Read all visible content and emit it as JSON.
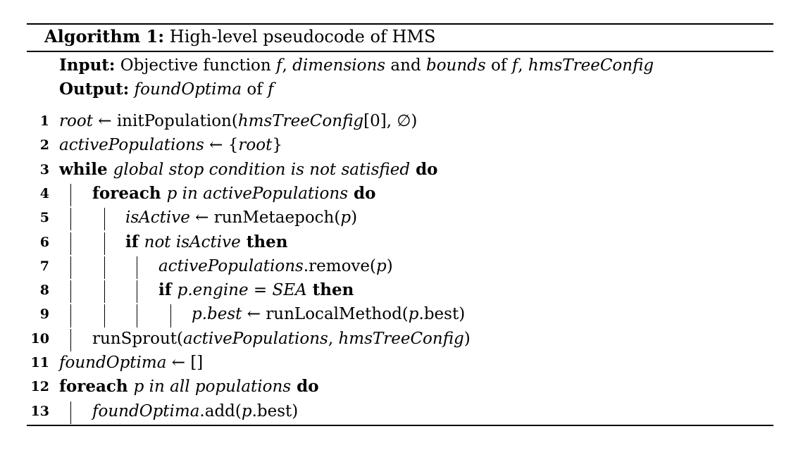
{
  "caption": {
    "label": "Algorithm 1:",
    "text": "High-level pseudocode of HMS"
  },
  "io": {
    "input_label": "Input:",
    "input_segments": [
      {
        "t": "Objective function ",
        "s": "r"
      },
      {
        "t": "f",
        "s": "i"
      },
      {
        "t": ", ",
        "s": "r"
      },
      {
        "t": "dimensions",
        "s": "i"
      },
      {
        "t": " and ",
        "s": "r"
      },
      {
        "t": "bounds",
        "s": "i"
      },
      {
        "t": " of ",
        "s": "r"
      },
      {
        "t": "f",
        "s": "i"
      },
      {
        "t": ", ",
        "s": "r"
      },
      {
        "t": "hmsTreeConfig",
        "s": "i"
      }
    ],
    "output_label": "Output:",
    "output_segments": [
      {
        "t": "foundOptima",
        "s": "i"
      },
      {
        "t": " of ",
        "s": "r"
      },
      {
        "t": "f",
        "s": "i"
      }
    ]
  },
  "lines": [
    {
      "n": "1",
      "indent": 0,
      "segs": [
        {
          "t": "root",
          "s": "i"
        },
        {
          "t": " ← initPopulation(",
          "s": "r"
        },
        {
          "t": "hmsTreeConfig",
          "s": "i"
        },
        {
          "t": "[0], ∅)",
          "s": "r"
        }
      ]
    },
    {
      "n": "2",
      "indent": 0,
      "segs": [
        {
          "t": "activePopulations",
          "s": "i"
        },
        {
          "t": " ← {",
          "s": "r"
        },
        {
          "t": "root",
          "s": "i"
        },
        {
          "t": "}",
          "s": "r"
        }
      ]
    },
    {
      "n": "3",
      "indent": 0,
      "segs": [
        {
          "t": "while ",
          "s": "b"
        },
        {
          "t": "global stop condition is not satisfied",
          "s": "i"
        },
        {
          "t": " do",
          "s": "b"
        }
      ]
    },
    {
      "n": "4",
      "indent": 1,
      "segs": [
        {
          "t": "foreach ",
          "s": "b"
        },
        {
          "t": "p in activePopulations",
          "s": "i"
        },
        {
          "t": " do",
          "s": "b"
        }
      ]
    },
    {
      "n": "5",
      "indent": 2,
      "segs": [
        {
          "t": "isActive",
          "s": "i"
        },
        {
          "t": " ← runMetaepoch(",
          "s": "r"
        },
        {
          "t": "p",
          "s": "i"
        },
        {
          "t": ")",
          "s": "r"
        }
      ]
    },
    {
      "n": "6",
      "indent": 2,
      "segs": [
        {
          "t": "if ",
          "s": "b"
        },
        {
          "t": "not isActive",
          "s": "i"
        },
        {
          "t": " then",
          "s": "b"
        }
      ]
    },
    {
      "n": "7",
      "indent": 3,
      "segs": [
        {
          "t": "activePopulations",
          "s": "i"
        },
        {
          "t": ".remove(",
          "s": "r"
        },
        {
          "t": "p",
          "s": "i"
        },
        {
          "t": ")",
          "s": "r"
        }
      ]
    },
    {
      "n": "8",
      "indent": 3,
      "segs": [
        {
          "t": "if ",
          "s": "b"
        },
        {
          "t": "p.engine = SEA",
          "s": "i"
        },
        {
          "t": " then",
          "s": "b"
        }
      ]
    },
    {
      "n": "9",
      "indent": 4,
      "segs": [
        {
          "t": "p.best",
          "s": "i"
        },
        {
          "t": " ← runLocalMethod(",
          "s": "r"
        },
        {
          "t": "p",
          "s": "i"
        },
        {
          "t": ".best)",
          "s": "r"
        }
      ]
    },
    {
      "n": "10",
      "indent": 1,
      "segs": [
        {
          "t": "runSprout(",
          "s": "r"
        },
        {
          "t": "activePopulations",
          "s": "i"
        },
        {
          "t": ", ",
          "s": "r"
        },
        {
          "t": "hmsTreeConfig",
          "s": "i"
        },
        {
          "t": ")",
          "s": "r"
        }
      ]
    },
    {
      "n": "11",
      "indent": 0,
      "segs": [
        {
          "t": "foundOptima",
          "s": "i"
        },
        {
          "t": " ← []",
          "s": "r"
        }
      ]
    },
    {
      "n": "12",
      "indent": 0,
      "segs": [
        {
          "t": "foreach ",
          "s": "b"
        },
        {
          "t": "p in all populations",
          "s": "i"
        },
        {
          "t": " do",
          "s": "b"
        }
      ]
    },
    {
      "n": "13",
      "indent": 1,
      "segs": [
        {
          "t": "foundOptima",
          "s": "i"
        },
        {
          "t": ".add(",
          "s": "r"
        },
        {
          "t": "p",
          "s": "i"
        },
        {
          "t": ".best)",
          "s": "r"
        }
      ]
    }
  ]
}
